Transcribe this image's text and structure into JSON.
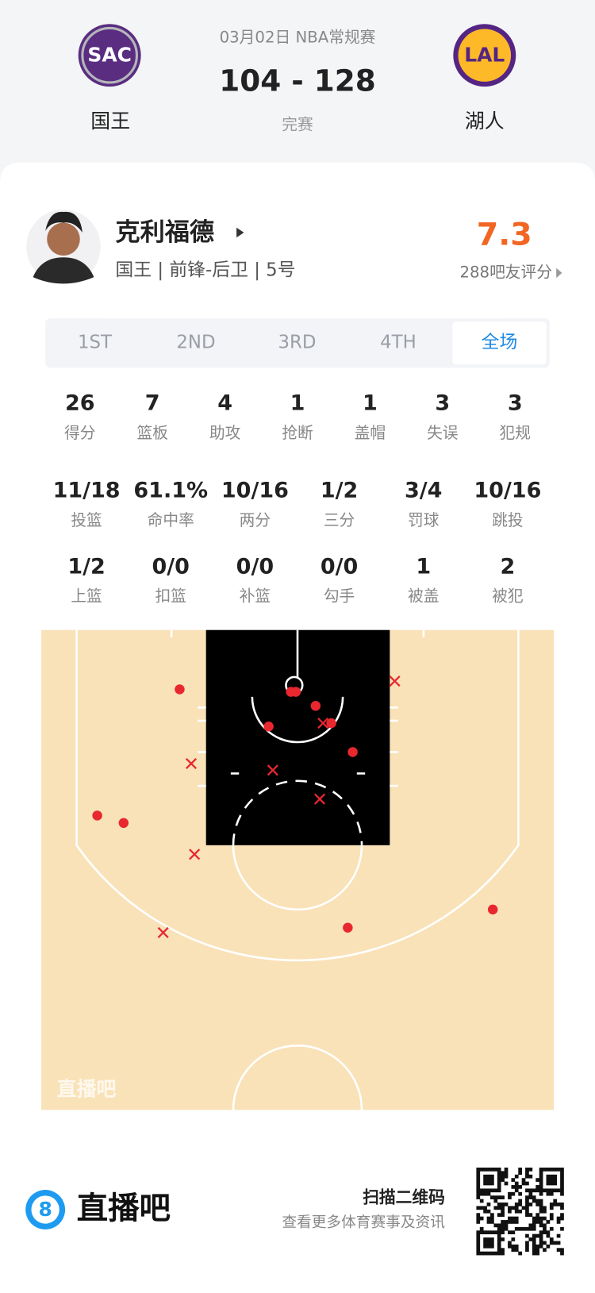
{
  "header": {
    "date": "03月02日 NBA常规赛",
    "score": "104 - 128",
    "status": "完赛",
    "home": {
      "logo": "SAC",
      "name": "国王"
    },
    "away": {
      "logo": "LAL",
      "name": "湖人"
    }
  },
  "player": {
    "name": "克利福德",
    "info": "国王 | 前锋-后卫 | 5号",
    "rating": "7.3",
    "rating_label": "288吧友评分"
  },
  "tabs": [
    "1ST",
    "2ND",
    "3RD",
    "4TH",
    "全场"
  ],
  "selected_tab": 4,
  "stats": [
    [
      {
        "value": "26",
        "label": "得分"
      },
      {
        "value": "7",
        "label": "篮板"
      },
      {
        "value": "4",
        "label": "助攻"
      },
      {
        "value": "1",
        "label": "抢断"
      },
      {
        "value": "1",
        "label": "盖帽"
      },
      {
        "value": "3",
        "label": "失误"
      },
      {
        "value": "3",
        "label": "犯规"
      }
    ],
    [
      {
        "value": "11/18",
        "label": "投篮"
      },
      {
        "value": "61.1%",
        "label": "命中率"
      },
      {
        "value": "10/16",
        "label": "两分"
      },
      {
        "value": "1/2",
        "label": "三分"
      },
      {
        "value": "3/4",
        "label": "罚球"
      },
      {
        "value": "10/16",
        "label": "跳投"
      }
    ],
    [
      {
        "value": "1/2",
        "label": "上篮"
      },
      {
        "value": "0/0",
        "label": "扣篮"
      },
      {
        "value": "0/0",
        "label": "补篮"
      },
      {
        "value": "0/0",
        "label": "勾手"
      },
      {
        "value": "1",
        "label": "被盖"
      },
      {
        "value": "2",
        "label": "被犯"
      }
    ]
  ],
  "watermark": "直播吧",
  "footer": {
    "logo": "8",
    "brand": "直播吧",
    "scan": "扫描二维码",
    "more": "查看更多体育赛事及资讯"
  }
}
